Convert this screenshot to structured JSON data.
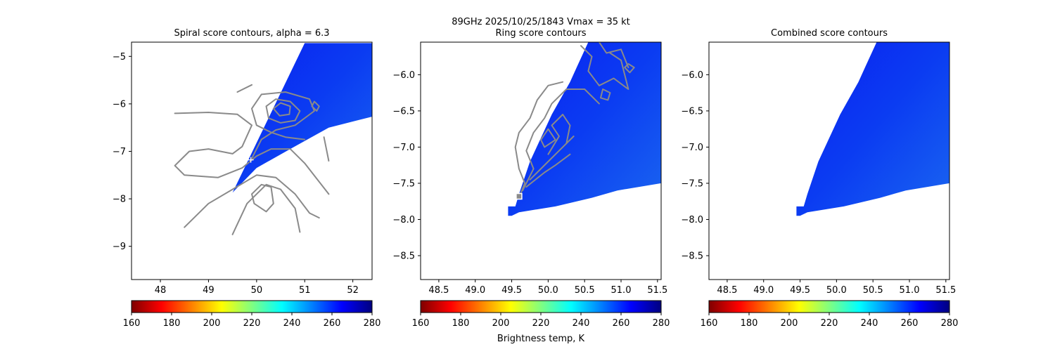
{
  "suptitle_line1": "89GHz  2025/10/25/1843    Vmax = 35 kt",
  "colorbar_label": "Brightness temp, K",
  "colormap": [
    "#7f0000",
    "#ff0000",
    "#ff8000",
    "#ffff00",
    "#80ff80",
    "#00ffff",
    "#0080ff",
    "#0000ff",
    "#00007f"
  ],
  "chart_data": [
    {
      "type": "heatmap",
      "title": "Spiral score contours, alpha =  6.3",
      "xlim": [
        47.4,
        52.4
      ],
      "ylim": [
        -9.7,
        -4.7
      ],
      "xticks": [
        48,
        49,
        50,
        51,
        52
      ],
      "yticks": [
        -9,
        -8,
        -7,
        -6,
        -5
      ],
      "colorbar": {
        "min": 160,
        "max": 280,
        "ticks": [
          160,
          180,
          200,
          220,
          240,
          260,
          280
        ]
      },
      "swath": [
        [
          49.5,
          -7.87
        ],
        [
          51.0,
          -4.72
        ],
        [
          52.4,
          -4.72
        ],
        [
          52.4,
          -6.27
        ],
        [
          51.5,
          -6.5
        ],
        [
          50.7,
          -6.95
        ],
        [
          50.0,
          -7.35
        ]
      ],
      "center_marker": [
        49.88,
        -7.18
      ],
      "contours": [
        [
          [
            48.3,
            -6.2
          ],
          [
            49.0,
            -6.18
          ],
          [
            49.6,
            -6.22
          ],
          [
            49.9,
            -6.45
          ],
          [
            49.7,
            -6.9
          ],
          [
            49.5,
            -7.05
          ],
          [
            49.0,
            -6.95
          ],
          [
            48.6,
            -7.0
          ],
          [
            48.3,
            -7.3
          ],
          [
            48.5,
            -7.5
          ],
          [
            49.2,
            -7.55
          ],
          [
            49.7,
            -7.35
          ],
          [
            50.0,
            -7.1
          ],
          [
            50.3,
            -6.95
          ],
          [
            50.7,
            -6.95
          ],
          [
            51.0,
            -7.25
          ],
          [
            51.5,
            -7.9
          ]
        ],
        [
          [
            48.5,
            -8.6
          ],
          [
            49.0,
            -8.1
          ],
          [
            49.5,
            -7.8
          ],
          [
            50.0,
            -7.5
          ],
          [
            50.4,
            -7.55
          ],
          [
            50.8,
            -7.9
          ],
          [
            51.1,
            -8.3
          ],
          [
            51.3,
            -8.4
          ]
        ],
        [
          [
            49.5,
            -8.75
          ],
          [
            49.8,
            -8.1
          ],
          [
            50.2,
            -7.7
          ],
          [
            50.5,
            -7.8
          ],
          [
            50.8,
            -8.2
          ],
          [
            50.9,
            -8.7
          ]
        ],
        [
          [
            49.9,
            -7.9
          ],
          [
            50.1,
            -7.7
          ],
          [
            50.3,
            -7.75
          ],
          [
            50.35,
            -8.1
          ],
          [
            50.2,
            -8.27
          ],
          [
            49.95,
            -8.1
          ],
          [
            49.9,
            -7.9
          ]
        ],
        [
          [
            49.6,
            -5.75
          ],
          [
            49.9,
            -5.6
          ]
        ],
        [
          [
            51.4,
            -6.7
          ],
          [
            51.45,
            -6.95
          ],
          [
            51.5,
            -7.2
          ]
        ],
        [
          [
            49.9,
            -7.15
          ],
          [
            50.1,
            -6.75
          ],
          [
            50.4,
            -6.55
          ],
          [
            50.8,
            -6.45
          ],
          [
            51.2,
            -6.15
          ],
          [
            51.1,
            -5.9
          ],
          [
            50.6,
            -5.75
          ],
          [
            50.1,
            -5.8
          ],
          [
            49.9,
            -6.1
          ],
          [
            50.0,
            -6.45
          ],
          [
            50.3,
            -6.6
          ],
          [
            50.6,
            -6.7
          ],
          [
            51.0,
            -6.75
          ]
        ],
        [
          [
            50.2,
            -6.05
          ],
          [
            50.4,
            -5.9
          ],
          [
            50.7,
            -5.95
          ],
          [
            50.9,
            -6.15
          ],
          [
            50.8,
            -6.35
          ],
          [
            50.5,
            -6.4
          ],
          [
            50.25,
            -6.3
          ],
          [
            50.2,
            -6.05
          ]
        ],
        [
          [
            50.35,
            -6.1
          ],
          [
            50.5,
            -5.98
          ],
          [
            50.7,
            -6.05
          ],
          [
            50.68,
            -6.22
          ],
          [
            50.48,
            -6.25
          ],
          [
            50.35,
            -6.1
          ]
        ],
        [
          [
            51.2,
            -5.95
          ],
          [
            51.3,
            -6.05
          ],
          [
            51.25,
            -6.15
          ],
          [
            51.15,
            -6.05
          ],
          [
            51.2,
            -5.95
          ]
        ]
      ]
    },
    {
      "type": "heatmap",
      "title": "Ring score contours",
      "xlim": [
        48.25,
        51.55
      ],
      "ylim": [
        -8.83,
        -5.55
      ],
      "xticks": [
        48.5,
        49.0,
        49.5,
        50.0,
        50.5,
        51.0,
        51.5
      ],
      "yticks": [
        -8.5,
        -8.0,
        -7.5,
        -7.0,
        -6.5,
        -6.0
      ],
      "colorbar": {
        "min": 160,
        "max": 280,
        "ticks": [
          160,
          180,
          200,
          220,
          240,
          260,
          280
        ]
      },
      "swath": [
        [
          49.45,
          -7.95
        ],
        [
          49.45,
          -7.82
        ],
        [
          49.55,
          -7.82
        ],
        [
          49.6,
          -7.65
        ],
        [
          49.75,
          -7.2
        ],
        [
          50.05,
          -6.55
        ],
        [
          50.3,
          -6.1
        ],
        [
          50.4,
          -5.88
        ],
        [
          50.55,
          -5.55
        ],
        [
          51.55,
          -5.55
        ],
        [
          51.55,
          -7.5
        ],
        [
          50.95,
          -7.6
        ],
        [
          50.6,
          -7.7
        ],
        [
          50.1,
          -7.82
        ],
        [
          49.6,
          -7.9
        ],
        [
          49.5,
          -7.95
        ]
      ],
      "center_marker": [
        49.6,
        -7.68
      ],
      "contours": [
        [
          [
            49.6,
            -7.7
          ],
          [
            49.68,
            -7.5
          ],
          [
            49.6,
            -7.3
          ],
          [
            49.55,
            -7.0
          ],
          [
            49.6,
            -6.8
          ],
          [
            49.75,
            -6.6
          ],
          [
            49.85,
            -6.35
          ],
          [
            50.0,
            -6.15
          ],
          [
            50.2,
            -6.1
          ]
        ],
        [
          [
            49.65,
            -7.6
          ],
          [
            49.8,
            -7.3
          ],
          [
            49.7,
            -7.05
          ],
          [
            49.8,
            -6.8
          ],
          [
            49.95,
            -6.6
          ],
          [
            50.05,
            -6.4
          ],
          [
            50.25,
            -6.2
          ],
          [
            50.5,
            -6.2
          ],
          [
            50.7,
            -6.4
          ]
        ],
        [
          [
            49.7,
            -7.55
          ],
          [
            49.95,
            -7.35
          ],
          [
            50.1,
            -7.25
          ],
          [
            50.3,
            -7.1
          ]
        ],
        [
          [
            49.75,
            -7.45
          ],
          [
            50.0,
            -7.2
          ],
          [
            50.2,
            -7.0
          ],
          [
            50.35,
            -6.85
          ]
        ],
        [
          [
            50.0,
            -7.1
          ],
          [
            50.15,
            -6.85
          ],
          [
            50.05,
            -6.7
          ],
          [
            50.2,
            -6.55
          ],
          [
            50.3,
            -6.7
          ],
          [
            50.25,
            -6.95
          ]
        ],
        [
          [
            49.9,
            -6.9
          ],
          [
            50.0,
            -6.75
          ],
          [
            50.1,
            -6.9
          ],
          [
            49.95,
            -7.0
          ],
          [
            49.9,
            -6.9
          ]
        ],
        [
          [
            50.45,
            -5.6
          ],
          [
            50.6,
            -5.75
          ],
          [
            50.55,
            -5.95
          ],
          [
            50.7,
            -6.15
          ],
          [
            50.9,
            -6.05
          ],
          [
            51.1,
            -6.2
          ],
          [
            51.0,
            -5.8
          ],
          [
            50.85,
            -5.7
          ]
        ],
        [
          [
            50.7,
            -5.55
          ],
          [
            50.8,
            -5.7
          ],
          [
            51.0,
            -5.65
          ],
          [
            51.1,
            -5.9
          ]
        ],
        [
          [
            50.75,
            -6.2
          ],
          [
            50.85,
            -6.25
          ],
          [
            50.82,
            -6.35
          ],
          [
            50.72,
            -6.32
          ],
          [
            50.75,
            -6.2
          ]
        ],
        [
          [
            51.1,
            -5.85
          ],
          [
            51.18,
            -5.9
          ],
          [
            51.12,
            -5.97
          ],
          [
            51.05,
            -5.9
          ],
          [
            51.1,
            -5.85
          ]
        ]
      ]
    },
    {
      "type": "heatmap",
      "title": "Combined score contours",
      "xlim": [
        48.25,
        51.55
      ],
      "ylim": [
        -8.83,
        -5.55
      ],
      "xticks": [
        48.5,
        49.0,
        49.5,
        50.0,
        50.5,
        51.0,
        51.5
      ],
      "yticks": [
        -8.5,
        -8.0,
        -7.5,
        -7.0,
        -6.5,
        -6.0
      ],
      "colorbar": {
        "min": 160,
        "max": 280,
        "ticks": [
          160,
          180,
          200,
          220,
          240,
          260,
          280
        ]
      },
      "swath": [
        [
          49.45,
          -7.95
        ],
        [
          49.45,
          -7.82
        ],
        [
          49.55,
          -7.82
        ],
        [
          49.6,
          -7.65
        ],
        [
          49.75,
          -7.2
        ],
        [
          50.05,
          -6.55
        ],
        [
          50.3,
          -6.1
        ],
        [
          50.4,
          -5.88
        ],
        [
          50.55,
          -5.55
        ],
        [
          51.55,
          -5.55
        ],
        [
          51.55,
          -7.5
        ],
        [
          50.95,
          -7.6
        ],
        [
          50.6,
          -7.7
        ],
        [
          50.1,
          -7.82
        ],
        [
          49.6,
          -7.9
        ],
        [
          49.5,
          -7.95
        ]
      ]
    }
  ]
}
